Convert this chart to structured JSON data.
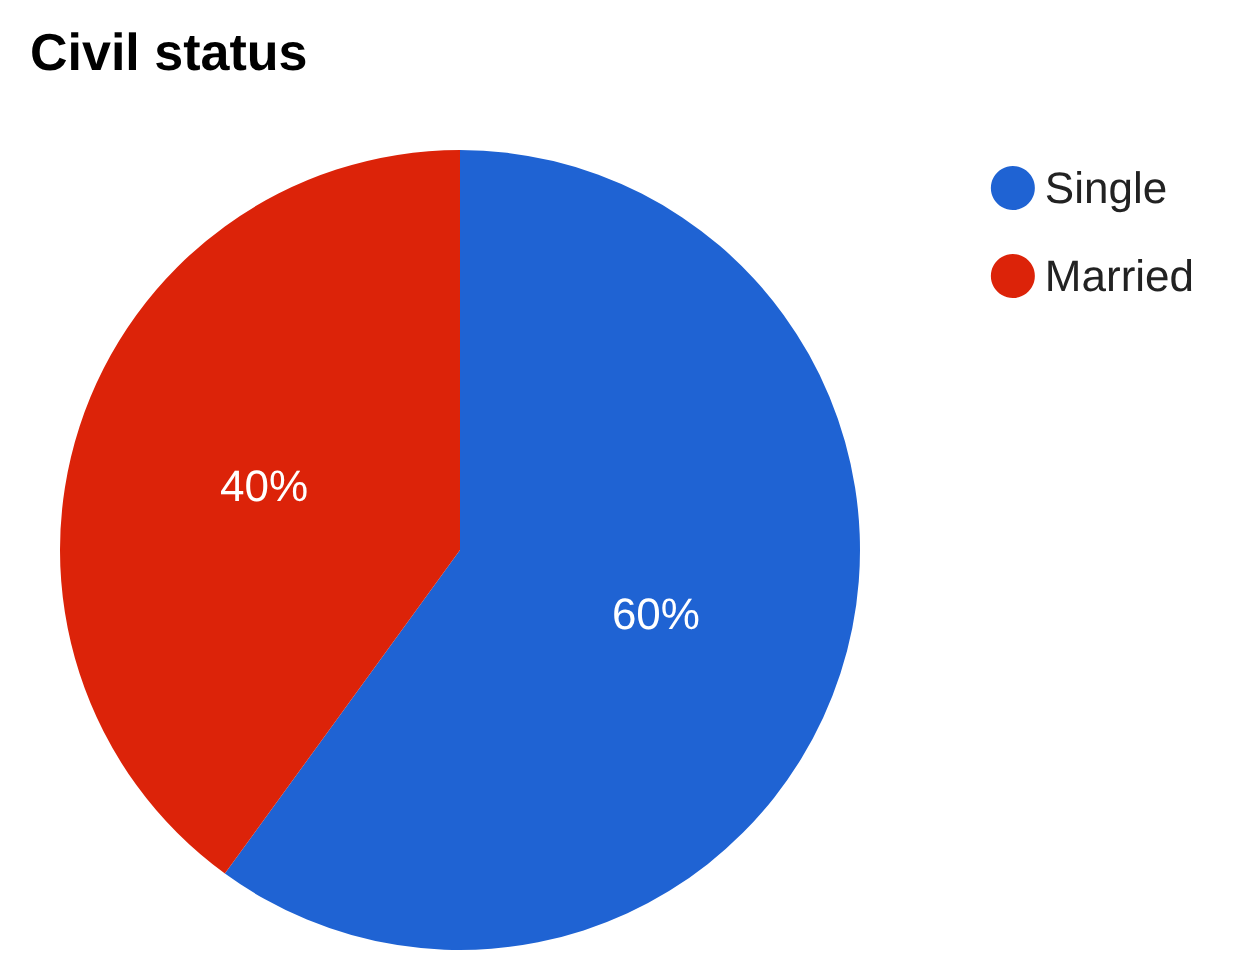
{
  "chart_data": {
    "type": "pie",
    "title": "Civil status",
    "categories": [
      "Single",
      "Married"
    ],
    "values": [
      60,
      40
    ],
    "colors": [
      "#1f63d3",
      "#dc2309"
    ],
    "legend": "top right",
    "value_labels": [
      "60%",
      "40%"
    ]
  }
}
